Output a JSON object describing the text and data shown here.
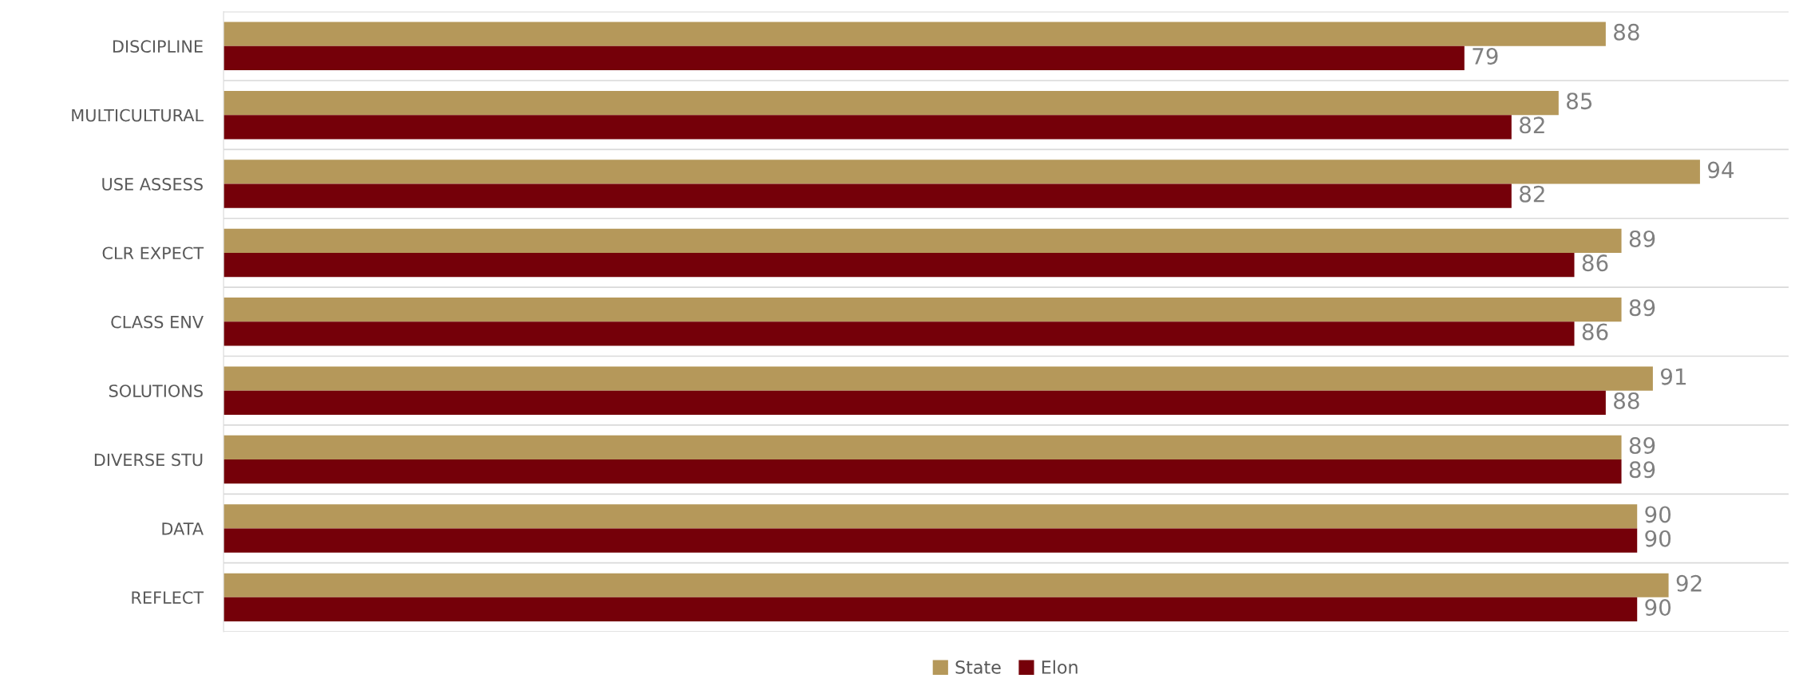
{
  "chart_data": {
    "type": "bar",
    "orientation": "horizontal",
    "categories": [
      "DISCIPLINE",
      "MULTICULTURAL",
      "USE ASSESS",
      "CLR EXPECT",
      "CLASS ENV",
      "SOLUTIONS",
      "DIVERSE STU",
      "DATA",
      "REFLECT"
    ],
    "series": [
      {
        "name": "State",
        "color": "#b5985a",
        "values": [
          88,
          85,
          94,
          89,
          89,
          91,
          89,
          90,
          92
        ]
      },
      {
        "name": "Elon",
        "color": "#750009",
        "values": [
          79,
          82,
          82,
          86,
          86,
          88,
          89,
          90,
          90
        ]
      }
    ],
    "data_labels": true,
    "grid": "y",
    "legend": "bottom",
    "tick_labels": "y"
  }
}
